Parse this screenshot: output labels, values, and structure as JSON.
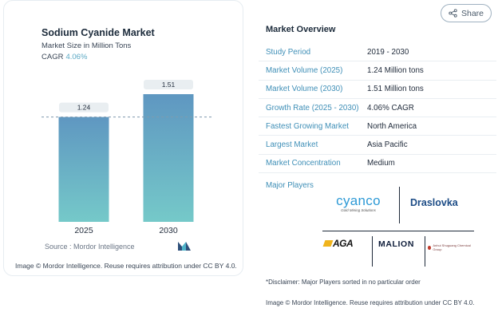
{
  "chart_card": {
    "title": "Sodium Cyanide Market",
    "subtitle": "Market Size in Million Tons",
    "cagr_label": "CAGR",
    "cagr_value": "4.06%",
    "source": "Source :  Mordor Intelligence",
    "brand_logo_icon": "mordor-intelligence-logo-icon",
    "attribution": "Image © Mordor Intelligence. Reuse requires attribution under CC BY 4.0."
  },
  "chart_data": {
    "type": "bar",
    "categories": [
      "2025",
      "2030"
    ],
    "values": [
      1.24,
      1.51
    ],
    "data_labels": [
      "1.24",
      "1.51"
    ],
    "title": "Sodium Cyanide Market",
    "subtitle": "Market Size in Million Tons",
    "xlabel": "",
    "ylabel": "",
    "ylim": [
      0,
      1.6
    ],
    "grid": false,
    "reference_line": "dashed line at 2025 value",
    "colors": {
      "bar_top": "#5f97c1",
      "bar_bottom": "#75c9c9",
      "label_box": "#e9eef1"
    }
  },
  "share": {
    "label": "Share",
    "icon": "share-icon"
  },
  "overview": {
    "title": "Market Overview",
    "rows": [
      {
        "key": "Study Period",
        "value": "2019 - 2030"
      },
      {
        "key": "Market Volume (2025)",
        "value": "1.24 Million tons"
      },
      {
        "key": "Market Volume (2030)",
        "value": "1.51 Million tons"
      },
      {
        "key": "Growth Rate (2025 - 2030)",
        "value": "4.06% CAGR"
      },
      {
        "key": "Fastest Growing Market",
        "value": "North America"
      },
      {
        "key": "Largest Market",
        "value": "Asia Pacific"
      },
      {
        "key": "Market Concentration",
        "value": "Medium"
      }
    ]
  },
  "players": {
    "label": "Major Players",
    "cyanco": "cyanco",
    "cyanco_tag": "Gold Mining Solutions",
    "draslovka": "Draslovka",
    "aga": "AGA",
    "malion": "MALION",
    "small": "Anhui Shuguang Chemical Group"
  },
  "disclaimer": "*Disclaimer: Major Players sorted in no particular order",
  "attribution_right": "Image © Mordor Intelligence. Reuse requires attribution under CC BY 4.0."
}
